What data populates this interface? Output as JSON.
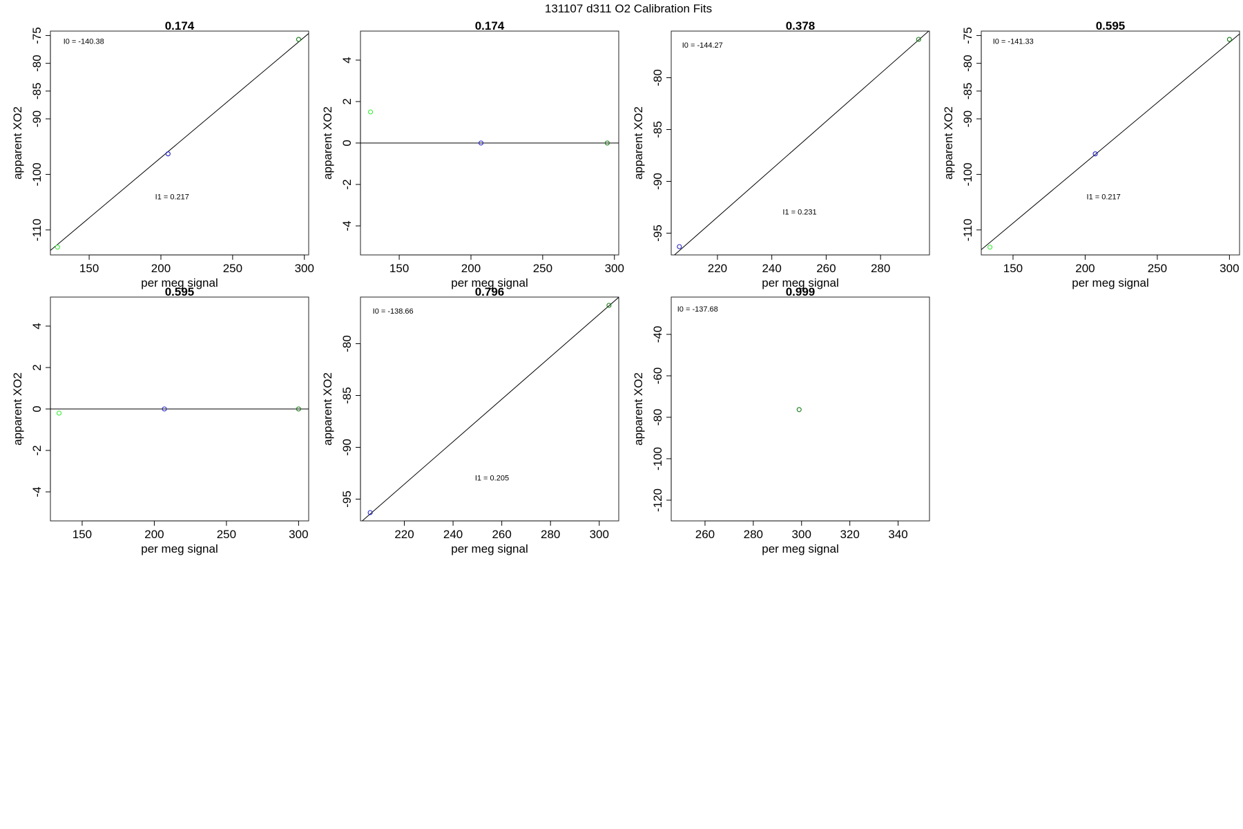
{
  "figure": {
    "title": "131107   d311   O2 Calibration Fits"
  },
  "chart_data": [
    {
      "type": "scatter",
      "title": "0.174",
      "xlabel": "per meg signal",
      "ylabel": "apparent XO2",
      "xlim": [
        123,
        303
      ],
      "ylim": [
        -114.5,
        -74.2
      ],
      "xticks": [
        150,
        200,
        250,
        300
      ],
      "yticks": [
        -110,
        -100,
        -90,
        -85,
        -80,
        -75
      ],
      "grid": false,
      "points": [
        {
          "x": 128,
          "y": -113.1,
          "color": "#33ee33"
        },
        {
          "x": 205,
          "y": -96.3,
          "color": "#2222cc"
        },
        {
          "x": 296,
          "y": -75.7,
          "color": "#117711"
        }
      ],
      "fit_line": {
        "intercept": -140.38,
        "slope": 0.217
      },
      "annotations": [
        {
          "text": "I0 =  -140.38",
          "x": 132,
          "y": -76.5
        },
        {
          "text": "I1 =  0.217",
          "x": 196,
          "y": -104.5
        }
      ]
    },
    {
      "type": "scatter",
      "title": "0.174",
      "xlabel": "per meg signal",
      "ylabel": "apparent XO2",
      "xlim": [
        123,
        303
      ],
      "ylim": [
        -5.4,
        5.4
      ],
      "xticks": [
        150,
        200,
        250,
        300
      ],
      "yticks": [
        -4,
        -2,
        0,
        2,
        4
      ],
      "grid": false,
      "points": [
        {
          "x": 130,
          "y": 1.5,
          "color": "#33ee33"
        },
        {
          "x": 207,
          "y": 0,
          "color": "#2222cc"
        },
        {
          "x": 295,
          "y": 0,
          "color": "#117711"
        }
      ],
      "fit_line": {
        "intercept": 0,
        "slope": 0
      },
      "annotations": []
    },
    {
      "type": "scatter",
      "title": "0.378",
      "xlabel": "per meg signal",
      "ylabel": "apparent XO2",
      "xlim": [
        203,
        298
      ],
      "ylim": [
        -97.1,
        -75.5
      ],
      "xticks": [
        220,
        240,
        260,
        280
      ],
      "yticks": [
        -95,
        -90,
        -85,
        -80
      ],
      "grid": false,
      "points": [
        {
          "x": 206,
          "y": -96.3,
          "color": "#2222cc"
        },
        {
          "x": 294,
          "y": -76.3,
          "color": "#117711"
        }
      ],
      "fit_line": {
        "intercept": -144.27,
        "slope": 0.231
      },
      "annotations": [
        {
          "text": "I0 =  -144.27",
          "x": 207,
          "y": -77.1
        },
        {
          "text": "I1 =  0.231",
          "x": 244,
          "y": -93.2
        }
      ]
    },
    {
      "type": "scatter",
      "title": "0.595",
      "xlabel": "per meg signal",
      "ylabel": "apparent XO2",
      "xlim": [
        128,
        307
      ],
      "ylim": [
        -114.5,
        -74.2
      ],
      "xticks": [
        150,
        200,
        250,
        300
      ],
      "yticks": [
        -110,
        -100,
        -90,
        -85,
        -80,
        -75
      ],
      "grid": false,
      "points": [
        {
          "x": 134,
          "y": -113.1,
          "color": "#33ee33"
        },
        {
          "x": 207,
          "y": -96.3,
          "color": "#2222cc"
        },
        {
          "x": 300,
          "y": -75.7,
          "color": "#117711"
        }
      ],
      "fit_line": {
        "intercept": -141.33,
        "slope": 0.217
      },
      "annotations": [
        {
          "text": "I0 =  -141.33",
          "x": 136,
          "y": -76.5
        },
        {
          "text": "I1 =  0.217",
          "x": 201,
          "y": -104.5
        }
      ]
    },
    {
      "type": "scatter",
      "title": "0.595",
      "xlabel": "per meg signal",
      "ylabel": "apparent XO2",
      "xlim": [
        128,
        307
      ],
      "ylim": [
        -5.4,
        5.4
      ],
      "xticks": [
        150,
        200,
        250,
        300
      ],
      "yticks": [
        -4,
        -2,
        0,
        2,
        4
      ],
      "grid": false,
      "points": [
        {
          "x": 134,
          "y": -0.2,
          "color": "#33ee33"
        },
        {
          "x": 207,
          "y": 0,
          "color": "#2222cc"
        },
        {
          "x": 300,
          "y": 0,
          "color": "#117711"
        }
      ],
      "fit_line": {
        "intercept": 0,
        "slope": 0
      },
      "annotations": []
    },
    {
      "type": "scatter",
      "title": "0.796",
      "xlabel": "per meg signal",
      "ylabel": "apparent XO2",
      "xlim": [
        202,
        308
      ],
      "ylim": [
        -97.1,
        -75.5
      ],
      "xticks": [
        220,
        240,
        260,
        280,
        300
      ],
      "yticks": [
        -95,
        -90,
        -85,
        -80
      ],
      "grid": false,
      "points": [
        {
          "x": 206,
          "y": -96.3,
          "color": "#2222cc"
        },
        {
          "x": 304,
          "y": -76.3,
          "color": "#117711"
        }
      ],
      "fit_line": {
        "intercept": -138.66,
        "slope": 0.205
      },
      "annotations": [
        {
          "text": "I0 =  -138.66",
          "x": 207,
          "y": -77.1
        },
        {
          "text": "I1 =  0.205",
          "x": 249,
          "y": -93.2
        }
      ]
    },
    {
      "type": "scatter",
      "title": "0.999",
      "xlabel": "per meg signal",
      "ylabel": "apparent XO2",
      "xlim": [
        246,
        353
      ],
      "ylim": [
        -130,
        -22
      ],
      "xticks": [
        260,
        280,
        300,
        320,
        340
      ],
      "yticks": [
        -120,
        -100,
        -80,
        -60,
        -40
      ],
      "grid": false,
      "points": [
        {
          "x": 299,
          "y": -76.3,
          "color": "#117711"
        }
      ],
      "fit_line": null,
      "annotations": [
        {
          "text": "I0 =  -137.68",
          "x": 248.5,
          "y": -29
        }
      ]
    }
  ]
}
